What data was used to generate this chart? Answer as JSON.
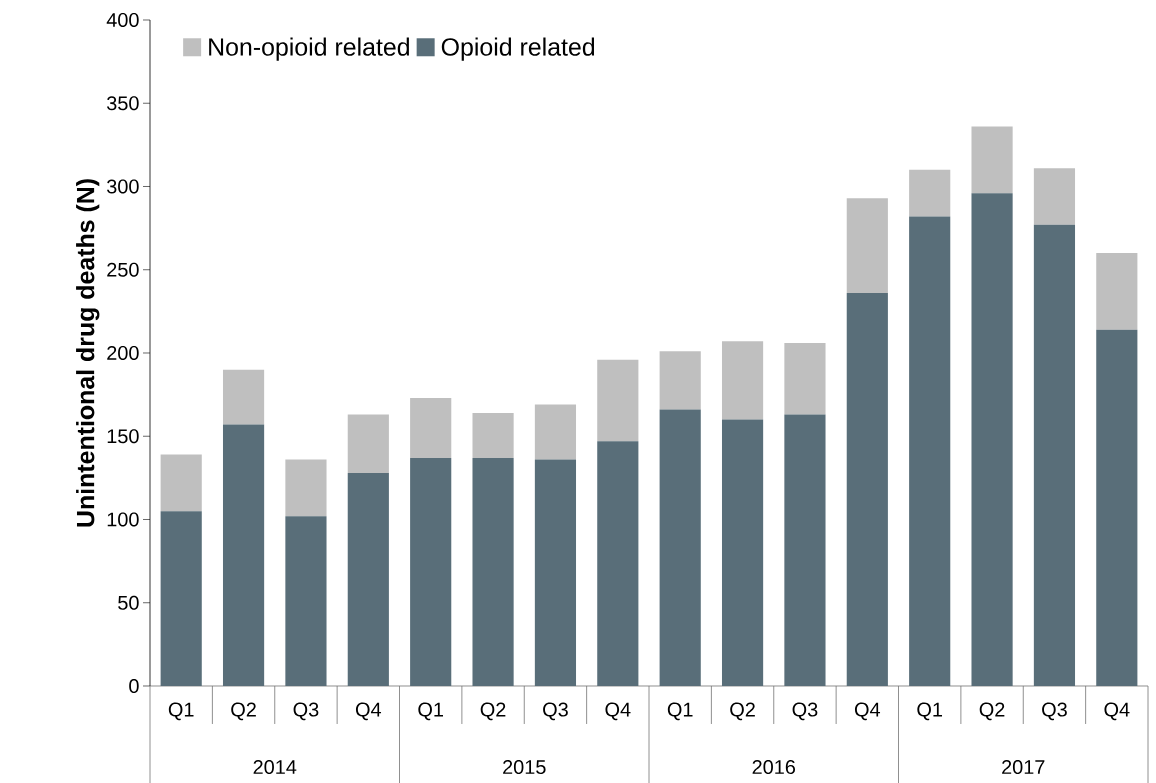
{
  "chart_data": {
    "type": "bar",
    "stacked": true,
    "ylabel": "Unintentional drug deaths  (N)",
    "categories": [
      "Q1",
      "Q2",
      "Q3",
      "Q4",
      "Q1",
      "Q2",
      "Q3",
      "Q4",
      "Q1",
      "Q2",
      "Q3",
      "Q4",
      "Q1",
      "Q2",
      "Q3",
      "Q4"
    ],
    "annotations": [
      "2014",
      "2015",
      "2016",
      "2017"
    ],
    "series": [
      {
        "name": "Opioid related",
        "color": "#596e79",
        "values": [
          105,
          157,
          102,
          128,
          137,
          137,
          136,
          147,
          166,
          160,
          163,
          236,
          282,
          296,
          277,
          214
        ]
      },
      {
        "name": "Non-opioid related",
        "color": "#bfbfbf",
        "values": [
          34,
          33,
          34,
          35,
          36,
          27,
          33,
          49,
          35,
          47,
          43,
          57,
          28,
          40,
          34,
          46
        ]
      }
    ],
    "ylim": [
      0,
      400
    ],
    "yticks": [
      0,
      50,
      100,
      150,
      200,
      250,
      300,
      350,
      400
    ],
    "legend": "top left"
  }
}
